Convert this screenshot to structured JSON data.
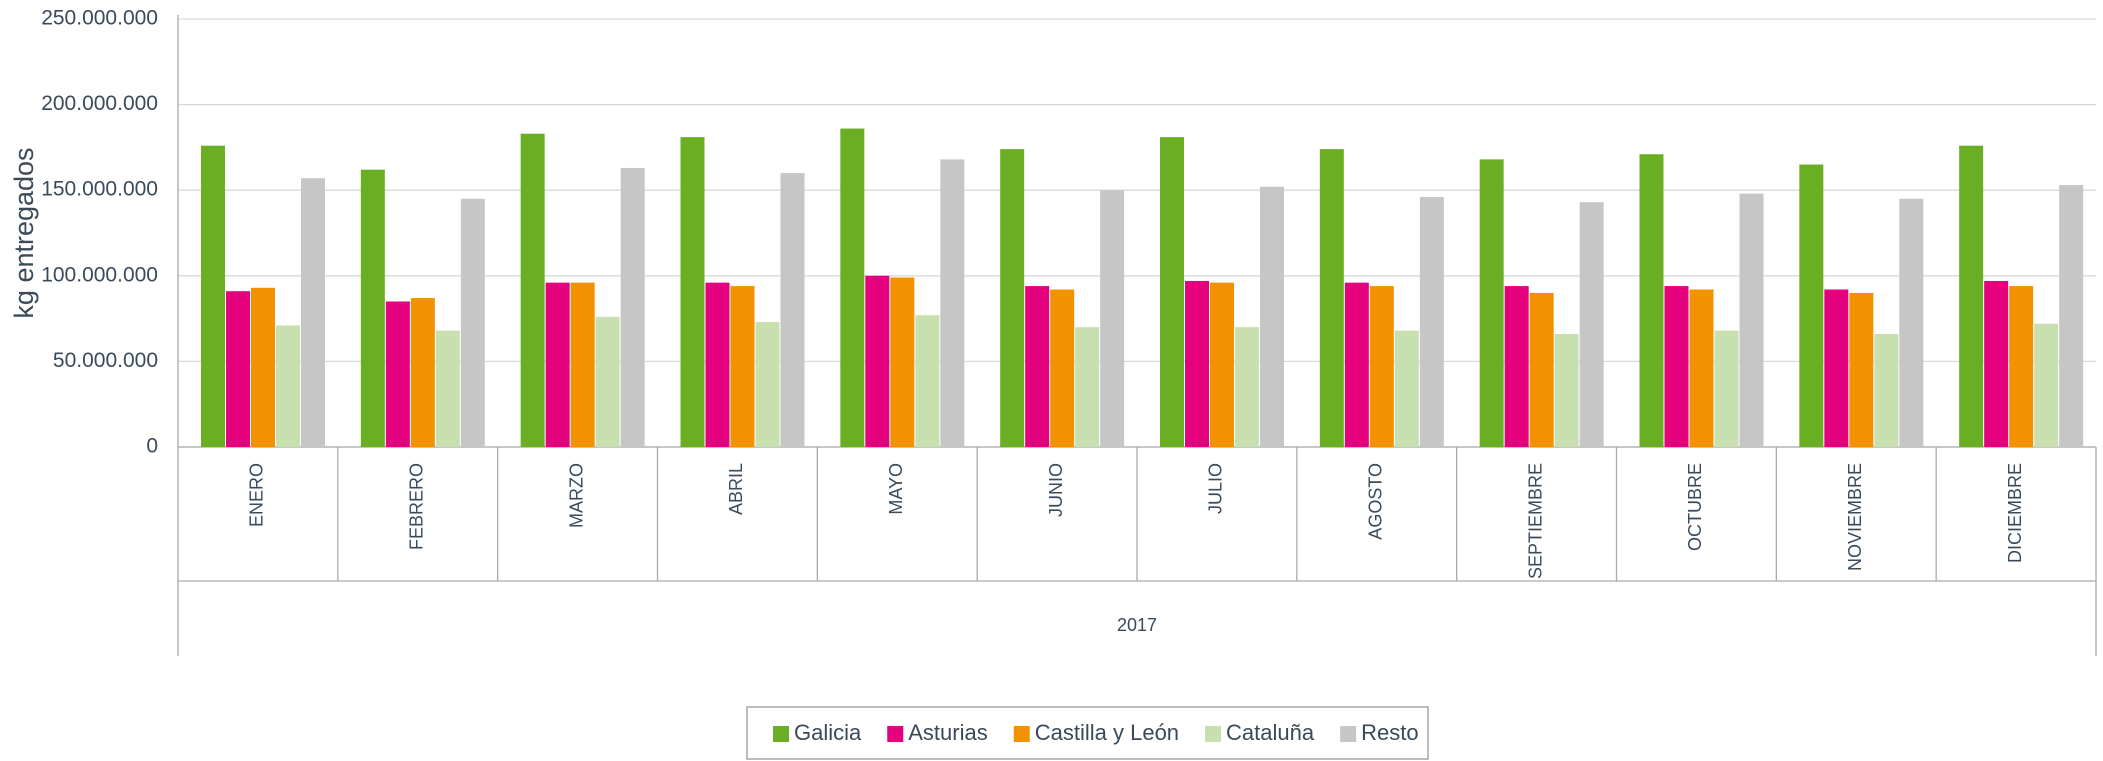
{
  "chart_data": {
    "type": "bar",
    "y_label": "kg entregados",
    "group_label": "2017",
    "categories": [
      "ENERO",
      "FEBRERO",
      "MARZO",
      "ABRIL",
      "MAYO",
      "JUNIO",
      "JULIO",
      "AGOSTO",
      "SEPTIEMBRE",
      "OCTUBRE",
      "NOVIEMBRE",
      "DICIEMBRE"
    ],
    "series": [
      {
        "name": "Galicia",
        "color": "#6aaf23",
        "values": [
          176000000,
          162000000,
          183000000,
          181000000,
          186000000,
          174000000,
          181000000,
          174000000,
          168000000,
          171000000,
          165000000,
          176000000
        ]
      },
      {
        "name": "Asturias",
        "color": "#e5007e",
        "values": [
          91000000,
          85000000,
          96000000,
          96000000,
          100000000,
          94000000,
          97000000,
          96000000,
          94000000,
          94000000,
          92000000,
          97000000
        ]
      },
      {
        "name": "Castilla y León",
        "color": "#f39200",
        "values": [
          93000000,
          87000000,
          96000000,
          94000000,
          99000000,
          92000000,
          96000000,
          94000000,
          90000000,
          92000000,
          90000000,
          94000000
        ]
      },
      {
        "name": "Cataluña",
        "color": "#c8e0b0",
        "values": [
          71000000,
          68000000,
          76000000,
          73000000,
          77000000,
          70000000,
          70000000,
          68000000,
          66000000,
          68000000,
          66000000,
          72000000
        ]
      },
      {
        "name": "Resto",
        "color": "#c6c6c6",
        "values": [
          157000000,
          145000000,
          163000000,
          160000000,
          168000000,
          150000000,
          152000000,
          146000000,
          143000000,
          148000000,
          145000000,
          153000000
        ]
      }
    ],
    "ylim": [
      0,
      250000000
    ],
    "yticks": [
      0,
      {
        "value": 50000000,
        "label": "50.000.000"
      },
      {
        "value": 100000000,
        "label": "100.000.000"
      },
      {
        "value": 150000000,
        "label": "150.000.000"
      },
      {
        "value": 200000000,
        "label": "200.000.000"
      },
      {
        "value": 250000000,
        "label": "250.000.000"
      }
    ],
    "grid": true,
    "legend": "bottom"
  }
}
